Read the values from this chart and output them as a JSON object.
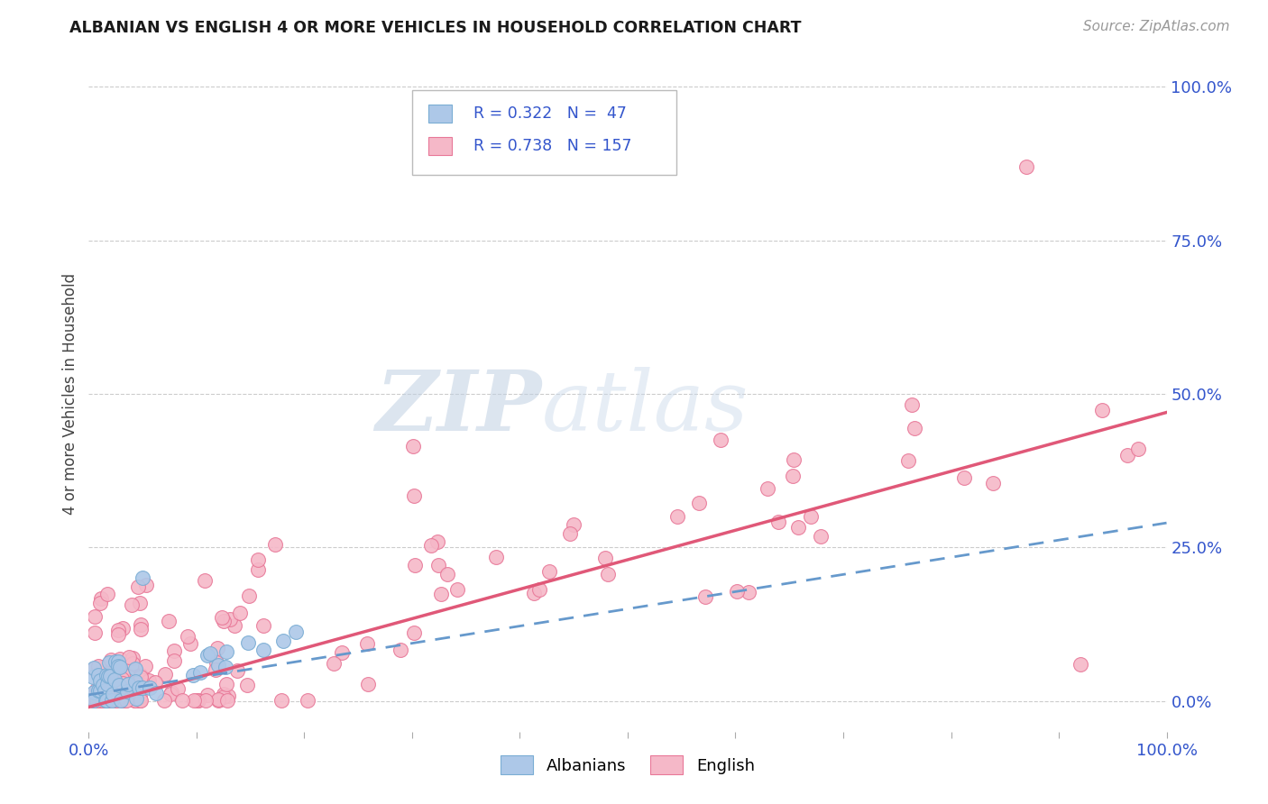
{
  "title": "ALBANIAN VS ENGLISH 4 OR MORE VEHICLES IN HOUSEHOLD CORRELATION CHART",
  "source": "Source: ZipAtlas.com",
  "ylabel": "4 or more Vehicles in Household",
  "albanian_R": 0.322,
  "albanian_N": 47,
  "english_R": 0.738,
  "english_N": 157,
  "albanian_color": "#adc8e8",
  "albanian_edge_color": "#7aadd4",
  "albanian_line_color": "#6699cc",
  "english_color": "#f5b8c8",
  "english_edge_color": "#e87898",
  "english_line_color": "#e05878",
  "watermark_zip_color": "#c5d5e5",
  "watermark_atlas_color": "#c5d5e5",
  "background_color": "#ffffff",
  "grid_color": "#cccccc",
  "legend_color": "#3355cc",
  "xlim": [
    0.0,
    1.0
  ],
  "ylim": [
    -0.05,
    1.05
  ],
  "yticks": [
    0.0,
    0.25,
    0.5,
    0.75,
    1.0
  ],
  "ytick_labels": [
    "0.0%",
    "25.0%",
    "50.0%",
    "75.0%",
    "100.0%"
  ]
}
